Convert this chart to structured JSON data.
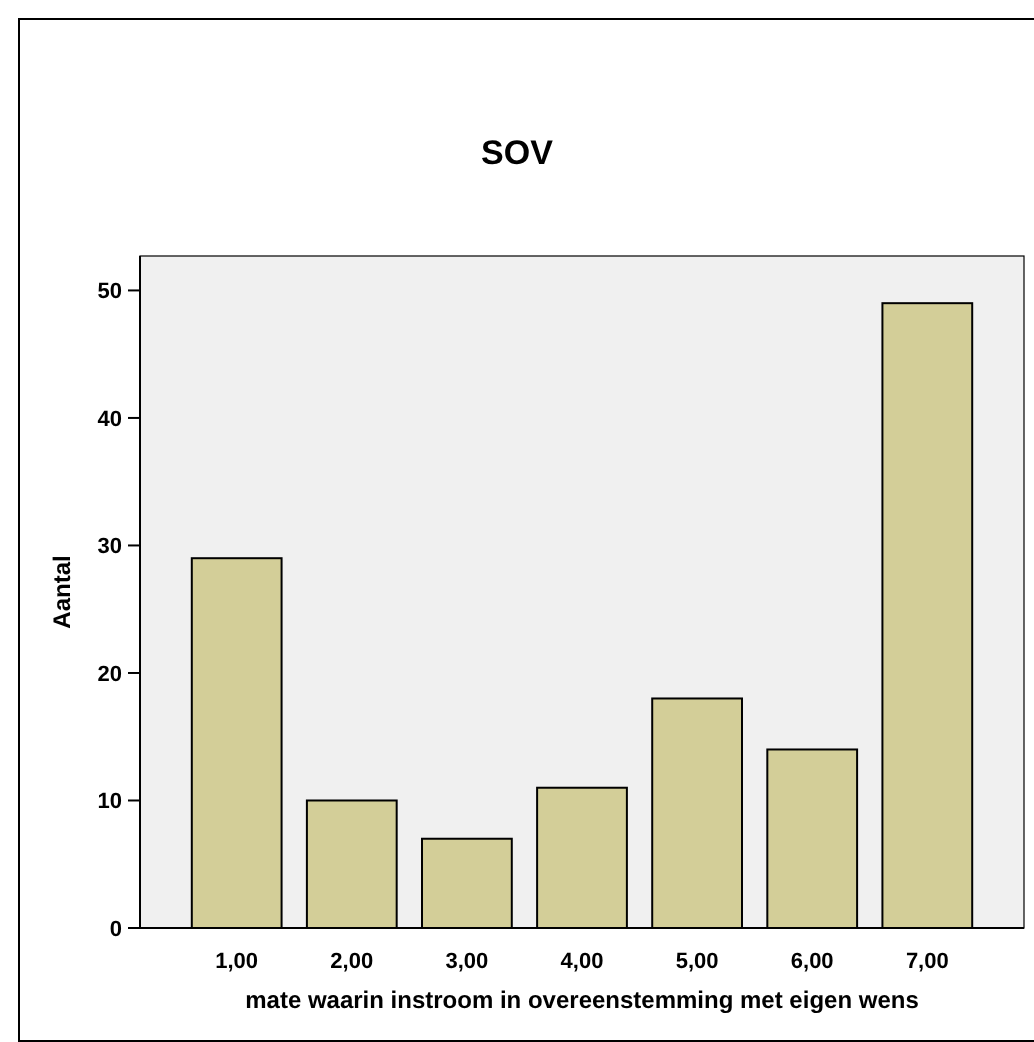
{
  "chart_data": {
    "type": "bar",
    "title": "SOV",
    "xlabel": "mate waarin instroom in overeenstemming met eigen wens",
    "ylabel": "Aantal",
    "categories": [
      "1,00",
      "2,00",
      "3,00",
      "4,00",
      "5,00",
      "6,00",
      "7,00"
    ],
    "values": [
      29,
      10,
      7,
      11,
      18,
      14,
      49
    ],
    "color": "#d3ce98",
    "ylim": [
      0,
      52.7
    ],
    "yticks": [
      0,
      10,
      20,
      30,
      40,
      50
    ],
    "grid": false
  }
}
